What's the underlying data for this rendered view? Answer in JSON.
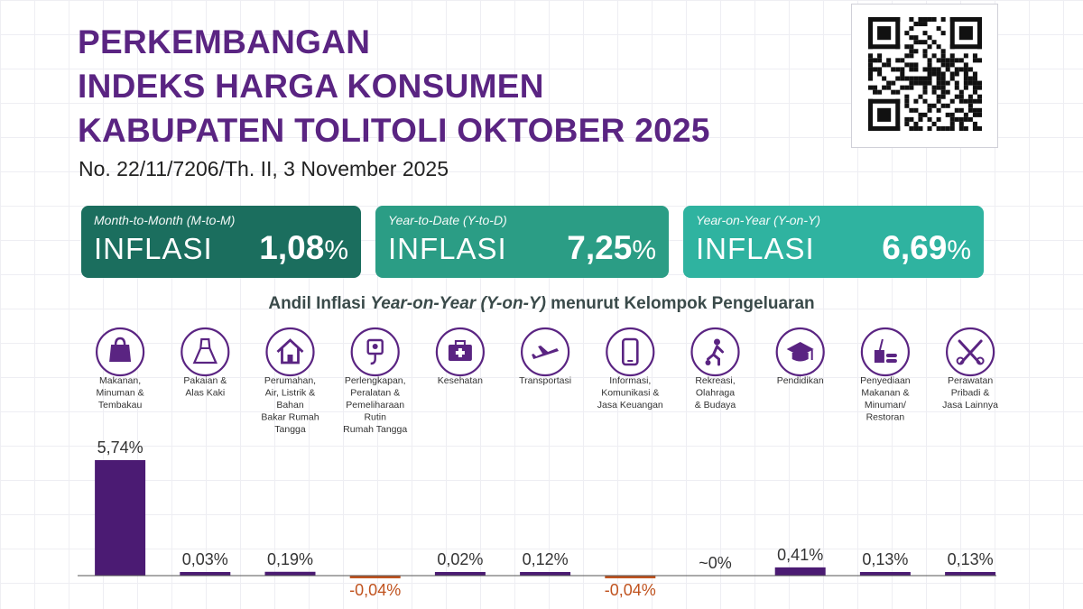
{
  "header": {
    "title_lines": [
      "PERKEMBANGAN",
      "INDEKS HARGA KONSUMEN",
      "KABUPATEN TOLITOLI OKTOBER 2025"
    ],
    "release_no": "No. 22/11/7206/Th. II, 3 November 2025"
  },
  "cards": {
    "mtm": {
      "sub": "Month-to-Month (M-to-M)",
      "label": "INFLASI",
      "value": "1,08",
      "unit": "%",
      "color": "#1b6e5e"
    },
    "ytd": {
      "sub": "Year-to-Date (Y-to-D)",
      "label": "INFLASI",
      "value": "7,25",
      "unit": "%",
      "color": "#2b9d85"
    },
    "yoy": {
      "sub": "Year-on-Year (Y-on-Y)",
      "label": "INFLASI",
      "value": "6,69",
      "unit": "%",
      "color": "#2fb3a0"
    }
  },
  "chart_title": {
    "prefix": "Andil Inflasi ",
    "italic": "Year-on-Year (Y-on-Y)",
    "suffix": " menurut Kelompok Pengeluaran"
  },
  "colors": {
    "accent": "#5a2482",
    "bar": "#4b1b73",
    "negative": "#c0531f",
    "icon": "#5a2482"
  },
  "chart_data": {
    "type": "bar",
    "title": "Andil Inflasi Year-on-Year (Y-on-Y) menurut Kelompok Pengeluaran",
    "categories": [
      {
        "label_lines": [
          "Makanan,",
          "Minuman &",
          "Tembakau"
        ],
        "icon": "shopping-bag-icon"
      },
      {
        "label_lines": [
          "Pakaian &",
          "Alas Kaki"
        ],
        "icon": "dress-icon"
      },
      {
        "label_lines": [
          "Perumahan,",
          "Air, Listrik &",
          "Bahan",
          "Bakar Rumah",
          "Tangga"
        ],
        "icon": "house-icon"
      },
      {
        "label_lines": [
          "Perlengkapan,",
          "Peralatan &",
          "Pemeliharaan",
          "Rutin",
          "Rumah Tangga"
        ],
        "icon": "appliance-icon"
      },
      {
        "label_lines": [
          "Kesehatan"
        ],
        "icon": "medical-kit-icon"
      },
      {
        "label_lines": [
          "Transportasi"
        ],
        "icon": "airplane-icon"
      },
      {
        "label_lines": [
          "Informasi,",
          "Komunikasi &",
          "Jasa Keuangan"
        ],
        "icon": "smartphone-icon"
      },
      {
        "label_lines": [
          "Rekreasi,",
          "Olahraga",
          "& Budaya"
        ],
        "icon": "football-player-icon"
      },
      {
        "label_lines": [
          "Pendidikan"
        ],
        "icon": "graduation-cap-icon"
      },
      {
        "label_lines": [
          "Penyediaan",
          "Makanan &",
          "Minuman/",
          "Restoran"
        ],
        "icon": "fast-food-icon"
      },
      {
        "label_lines": [
          "Perawatan",
          "Pribadi &",
          "Jasa Lainnya"
        ],
        "icon": "scissors-comb-icon"
      }
    ],
    "values": [
      5.74,
      0.03,
      0.19,
      -0.04,
      0.02,
      0.12,
      -0.04,
      0,
      0.41,
      0.13,
      0.13
    ],
    "value_labels": [
      "5,74%",
      "0,03%",
      "0,19%",
      "-0,04%",
      "0,02%",
      "0,12%",
      "-0,04%",
      "~0%",
      "0,41%",
      "0,13%",
      "0,13%"
    ],
    "unit": "%"
  }
}
